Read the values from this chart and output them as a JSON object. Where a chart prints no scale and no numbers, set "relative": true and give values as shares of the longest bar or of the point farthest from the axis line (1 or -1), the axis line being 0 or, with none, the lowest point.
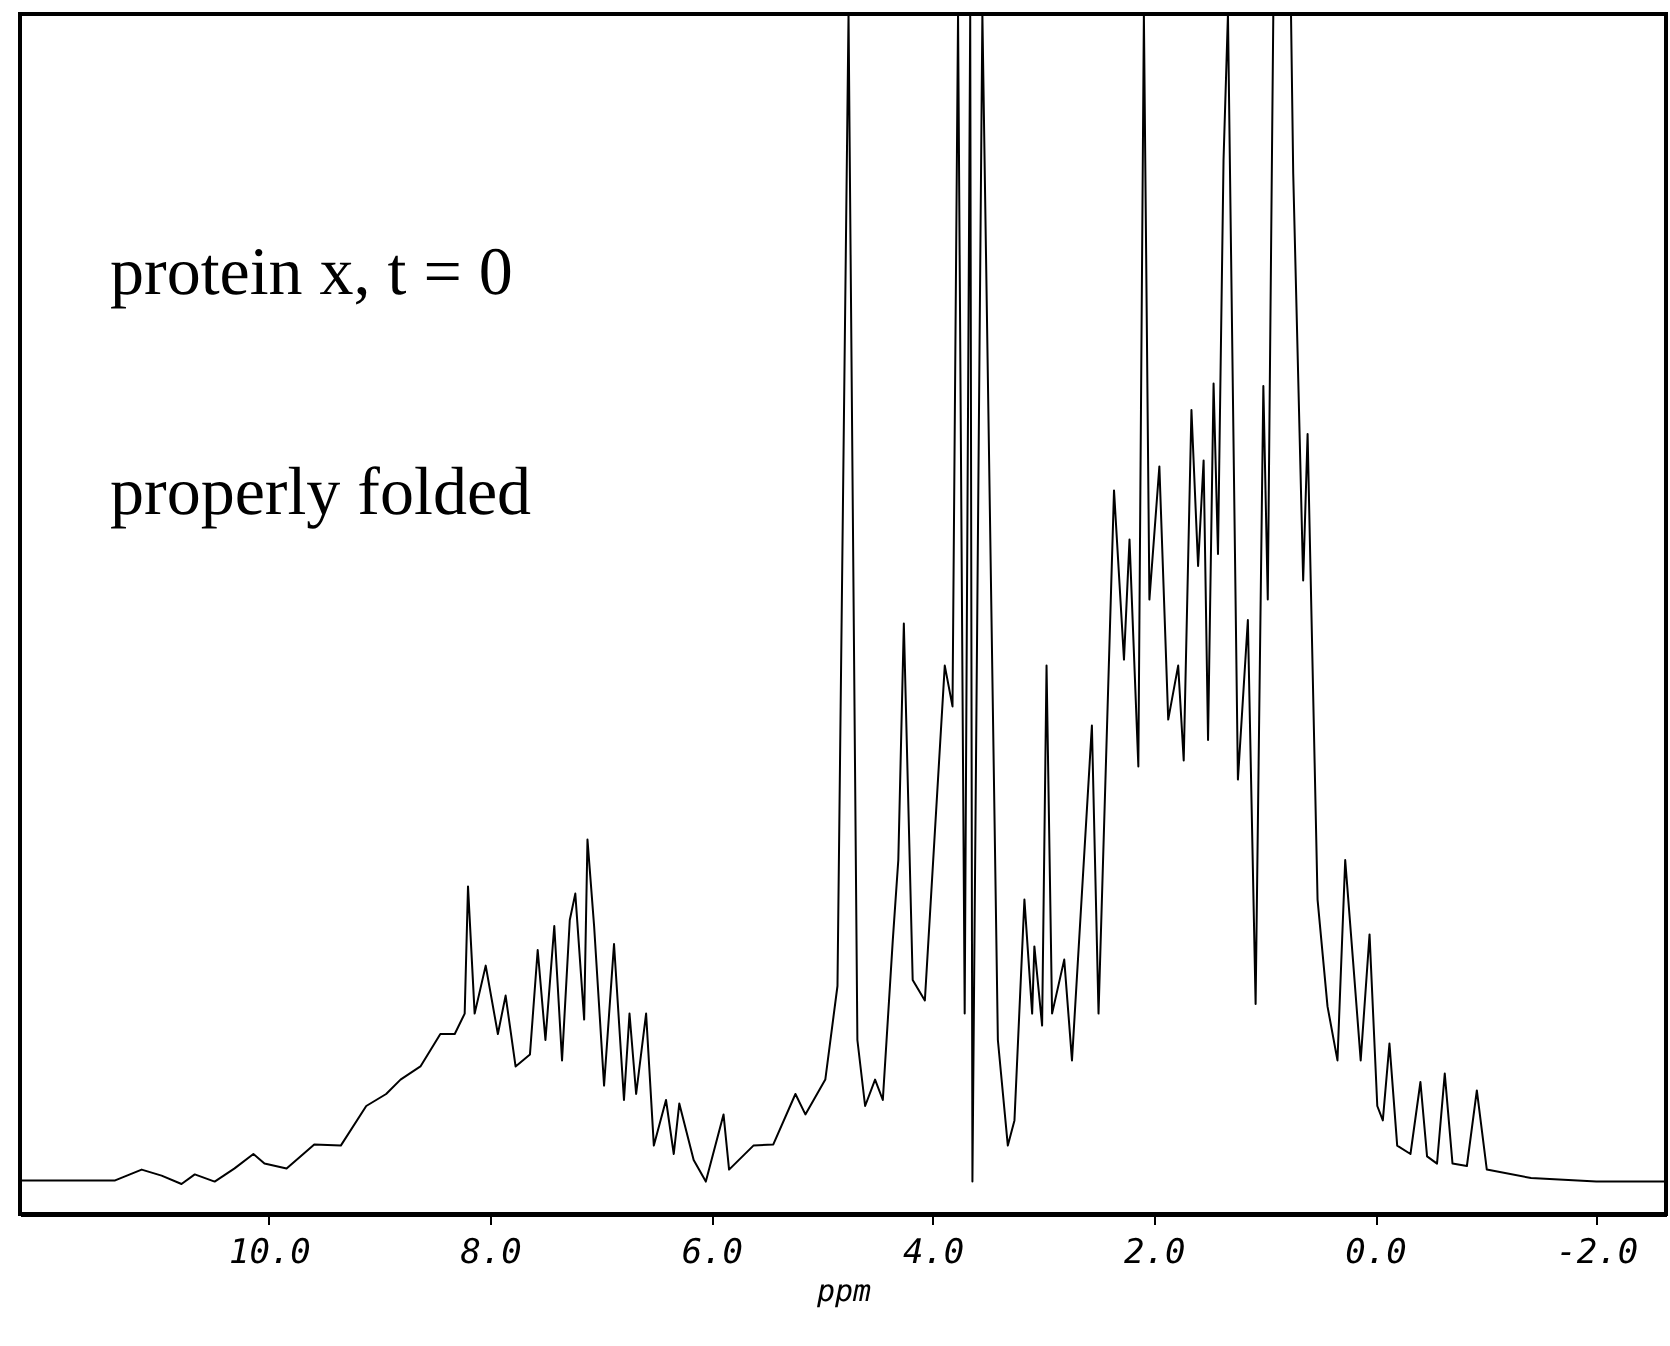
{
  "chart_data": {
    "type": "line",
    "relative": true,
    "xlabel": "ppm",
    "xlim": [
      12.25,
      -2.63
    ],
    "xticks": [
      {
        "value": 10,
        "label": "10.0"
      },
      {
        "value": 8,
        "label": "8.0"
      },
      {
        "value": 6,
        "label": "6.0"
      },
      {
        "value": 4,
        "label": "4.0"
      },
      {
        "value": 2,
        "label": "2.0"
      },
      {
        "value": 0,
        "label": "0.0"
      },
      {
        "value": -2,
        "label": "-2.0"
      }
    ],
    "tick_labels": "x",
    "grid": false,
    "marker": "none",
    "line_style": "solid",
    "annotations": [
      "protein x, t = 0",
      "properly folded"
    ],
    "series": [
      {
        "color": "#000000",
        "x": [
          12.25,
          11.39,
          11.15,
          10.97,
          10.79,
          10.67,
          10.49,
          10.31,
          10.14,
          10.04,
          9.84,
          9.59,
          9.35,
          9.12,
          8.94,
          8.81,
          8.63,
          8.45,
          8.32,
          8.23,
          8.2,
          8.14,
          8.04,
          7.93,
          7.86,
          7.77,
          7.64,
          7.57,
          7.5,
          7.42,
          7.35,
          7.28,
          7.23,
          7.15,
          7.12,
          7.06,
          6.97,
          6.88,
          6.79,
          6.74,
          6.68,
          6.59,
          6.52,
          6.41,
          6.34,
          6.29,
          6.16,
          6.05,
          5.89,
          5.84,
          5.62,
          5.44,
          5.24,
          5.15,
          4.97,
          4.86,
          4.76,
          4.68,
          4.61,
          4.52,
          4.45,
          4.36,
          4.31,
          4.26,
          4.18,
          4.07,
          3.89,
          3.82,
          3.77,
          3.71,
          3.66,
          3.64,
          3.55,
          3.41,
          3.32,
          3.26,
          3.17,
          3.1,
          3.08,
          3.01,
          2.97,
          2.92,
          2.81,
          2.74,
          2.56,
          2.5,
          2.36,
          2.27,
          2.22,
          2.14,
          2.09,
          2.04,
          1.95,
          1.87,
          1.78,
          1.73,
          1.66,
          1.6,
          1.55,
          1.51,
          1.46,
          1.42,
          1.37,
          1.33,
          1.24,
          1.15,
          1.08,
          1.01,
          0.97,
          0.92,
          0.76,
          0.74,
          0.65,
          0.61,
          0.52,
          0.43,
          0.34,
          0.27,
          0.2,
          0.13,
          0.05,
          -0.02,
          -0.07,
          -0.13,
          -0.2,
          -0.32,
          -0.41,
          -0.47,
          -0.56,
          -0.63,
          -0.7,
          -0.83,
          -0.92,
          -1.01,
          -1.41,
          -2.0,
          -2.63
        ],
        "values": [
          0.028,
          0.028,
          0.037,
          0.032,
          0.025,
          0.033,
          0.027,
          0.038,
          0.05,
          0.042,
          0.038,
          0.058,
          0.057,
          0.09,
          0.1,
          0.112,
          0.123,
          0.15,
          0.15,
          0.167,
          0.273,
          0.167,
          0.207,
          0.15,
          0.182,
          0.123,
          0.133,
          0.22,
          0.145,
          0.24,
          0.128,
          0.245,
          0.267,
          0.162,
          0.312,
          0.24,
          0.107,
          0.225,
          0.095,
          0.167,
          0.1,
          0.167,
          0.057,
          0.095,
          0.05,
          0.092,
          0.045,
          0.027,
          0.083,
          0.037,
          0.057,
          0.058,
          0.1,
          0.083,
          0.112,
          0.19,
          1.0,
          0.145,
          0.09,
          0.112,
          0.095,
          0.228,
          0.295,
          0.492,
          0.195,
          0.178,
          0.457,
          0.423,
          1.0,
          0.167,
          1.0,
          0.027,
          1.0,
          0.145,
          0.057,
          0.078,
          0.262,
          0.167,
          0.223,
          0.157,
          0.457,
          0.167,
          0.212,
          0.128,
          0.407,
          0.167,
          0.603,
          0.462,
          0.562,
          0.373,
          1.0,
          0.512,
          0.623,
          0.412,
          0.457,
          0.378,
          0.67,
          0.54,
          0.628,
          0.395,
          0.692,
          0.55,
          0.878,
          1.0,
          0.362,
          0.495,
          0.175,
          0.69,
          0.512,
          1.0,
          1.0,
          0.867,
          0.528,
          0.65,
          0.262,
          0.173,
          0.128,
          0.295,
          0.212,
          0.128,
          0.233,
          0.09,
          0.078,
          0.142,
          0.057,
          0.05,
          0.11,
          0.048,
          0.042,
          0.117,
          0.042,
          0.04,
          0.103,
          0.037,
          0.03,
          0.027,
          0.027
        ]
      }
    ]
  }
}
